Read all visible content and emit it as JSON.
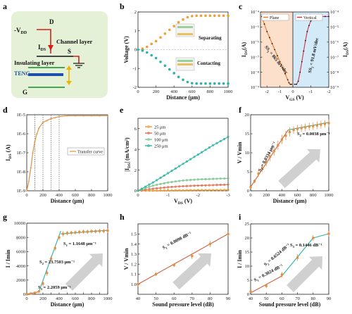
{
  "panels": {
    "a": {
      "label": "a",
      "texts": {
        "vdd": "-V",
        "vdd_sub": "DD",
        "d": "D",
        "ids": "I",
        "ids_sub": "DS",
        "channel": "Channel layer",
        "s": "S",
        "insulating": "Insulating layer",
        "teng": "TENG",
        "g": "G"
      },
      "colors": {
        "bg": "#e4f1d6",
        "wire": "#d4201c",
        "teng": "#1f4fa8",
        "arrow": "#f0b400",
        "layer": "#2e9a44"
      }
    },
    "b": {
      "label": "b"
    },
    "c": {
      "label": "c"
    },
    "d": {
      "label": "d"
    },
    "e": {
      "label": "e"
    },
    "f": {
      "label": "f"
    },
    "g": {
      "label": "g"
    },
    "h": {
      "label": "h"
    },
    "i": {
      "label": "i"
    }
  },
  "chart_data": [
    {
      "panel": "b",
      "type": "line",
      "xlabel": "Distance (μm)",
      "ylabel": "Voltage (V)",
      "xlim": [
        0,
        1000
      ],
      "ylim": [
        -2,
        2
      ],
      "xticks": [
        0,
        200,
        400,
        600,
        800,
        1000
      ],
      "yticks": [
        -2,
        -1,
        0,
        1,
        2
      ],
      "series": [
        {
          "name": "Separating",
          "color": "#f0a030",
          "x": [
            0,
            50,
            100,
            150,
            200,
            250,
            300,
            350,
            400,
            450,
            500,
            550,
            600,
            650,
            700,
            750,
            800,
            850,
            900,
            950,
            1000
          ],
          "y": [
            0,
            0.05,
            0.15,
            0.3,
            0.45,
            0.65,
            0.85,
            1.05,
            1.25,
            1.45,
            1.6,
            1.72,
            1.78,
            1.8,
            1.8,
            1.8,
            1.8,
            1.8,
            1.8,
            1.8,
            1.8
          ]
        },
        {
          "name": "Contacting",
          "color": "#2bb3a8",
          "x": [
            0,
            50,
            100,
            150,
            200,
            250,
            300,
            350,
            400,
            450,
            500,
            550,
            600,
            650,
            700,
            750,
            800,
            850,
            900,
            950,
            1000
          ],
          "y": [
            0,
            -0.05,
            -0.15,
            -0.3,
            -0.45,
            -0.65,
            -0.85,
            -1.05,
            -1.25,
            -1.45,
            -1.6,
            -1.72,
            -1.78,
            -1.8,
            -1.8,
            -1.8,
            -1.8,
            -1.8,
            -1.8,
            -1.8,
            -1.8
          ]
        }
      ]
    },
    {
      "panel": "c",
      "type": "line",
      "xlabel": "V",
      "xlabel_sub": "GS",
      "xlabel_unit": " (V)",
      "ylabel": "I",
      "ylabel_sub": "DS",
      "ylabel_unit": "(A)",
      "y2label": "I",
      "y2label_sub": "DS",
      "y2label_unit": "(A)",
      "yscale": "log",
      "left": {
        "xlim": [
          -2.5,
          0
        ],
        "xticks": [
          -2,
          -1,
          0
        ],
        "ylim_exp": [
          -9,
          -4
        ],
        "bg": "#fde0cc",
        "series": {
          "name": "Plane",
          "color": "#e87828",
          "x": [
            -2.4,
            -2.2,
            -2.0,
            -1.8,
            -1.6,
            -1.4,
            -1.2,
            -1.0,
            -0.8,
            -0.6,
            -0.4,
            -0.3,
            -0.2,
            -0.1
          ],
          "y_exp": [
            -4.3,
            -4.8,
            -5.3,
            -5.7,
            -6.1,
            -6.5,
            -6.9,
            -7.3,
            -7.7,
            -8.1,
            -8.5,
            -8.7,
            -8.8,
            -8.8
          ]
        },
        "annotation": "SS",
        "annotation_sub": "1",
        "annotation_rest": " = 865 mV/dec"
      },
      "right": {
        "xlim": [
          0,
          -2
        ],
        "xticks": [
          0,
          -1,
          -2
        ],
        "ylim_exp": [
          -9,
          -4
        ],
        "bg": "#d3ebf8",
        "series": {
          "name": "Vertical",
          "color": "#d03040",
          "x": [
            -0.1,
            -0.2,
            -0.3,
            -0.4,
            -0.5,
            -0.6,
            -0.7,
            -0.8,
            -0.9,
            -1.0,
            -1.1,
            -1.2,
            -1.4,
            -1.6,
            -1.8,
            -2.0
          ],
          "y_exp": [
            -8.8,
            -8.8,
            -8.6,
            -8.0,
            -7.3,
            -6.6,
            -5.9,
            -5.3,
            -4.9,
            -4.6,
            -4.5,
            -4.4,
            -4.35,
            -4.3,
            -4.3,
            -4.3
          ]
        },
        "annotation": "SS",
        "annotation_sub": "2",
        "annotation_rest": " = 91.8 mV/dec"
      }
    },
    {
      "panel": "d",
      "type": "line",
      "xlabel": "Distance (μm)",
      "ylabel": "I",
      "ylabel_sub": "DS",
      "ylabel_unit": " (A)",
      "yscale": "log",
      "xlim": [
        0,
        1000
      ],
      "ylim_exp": [
        -9,
        -5
      ],
      "xticks": [
        0,
        200,
        400,
        600,
        800,
        1000
      ],
      "yticks": [
        "1E-9",
        "1E-8",
        "1E-7",
        "1E-6",
        "1E-5"
      ],
      "dashed_x": [
        100,
        200,
        300,
        400
      ],
      "series": [
        {
          "name": "Transfer curve",
          "color": "#e09040",
          "x": [
            0,
            25,
            50,
            75,
            100,
            125,
            150,
            200,
            250,
            300,
            350,
            400,
            500,
            600,
            700,
            800,
            900,
            1000
          ],
          "y_exp": [
            -9.0,
            -8.5,
            -7.8,
            -7.0,
            -6.4,
            -6.0,
            -5.7,
            -5.4,
            -5.3,
            -5.2,
            -5.15,
            -5.1,
            -5.05,
            -5.05,
            -5.05,
            -5.05,
            -5.05,
            -5.05
          ]
        }
      ]
    },
    {
      "panel": "e",
      "type": "line",
      "xlabel": "V",
      "xlabel_sub": "DS",
      "xlabel_unit": " (V)",
      "ylabel": "|I",
      "ylabel_sub": "DS",
      "ylabel_unit": "| (mA/cm²)",
      "xlim": [
        0,
        -3
      ],
      "ylim": [
        0,
        7
      ],
      "xticks": [
        0,
        -1,
        -2,
        -3
      ],
      "yticks": [
        0,
        2,
        4,
        6
      ],
      "series": [
        {
          "name": "25 μm",
          "color": "#f0a030",
          "x": [
            0,
            -0.5,
            -1,
            -1.5,
            -2,
            -2.5,
            -3
          ],
          "y": [
            0,
            0.02,
            0.04,
            0.05,
            0.06,
            0.07,
            0.08
          ]
        },
        {
          "name": "50 μm",
          "color": "#e07050",
          "x": [
            0,
            -0.5,
            -1,
            -1.5,
            -2,
            -2.5,
            -3
          ],
          "y": [
            0,
            0.2,
            0.35,
            0.45,
            0.5,
            0.55,
            0.6
          ]
        },
        {
          "name": "100 μm",
          "color": "#7ec890",
          "x": [
            0,
            -0.5,
            -1,
            -1.5,
            -2,
            -2.5,
            -3
          ],
          "y": [
            0,
            0.5,
            0.8,
            1.0,
            1.1,
            1.15,
            1.2
          ]
        },
        {
          "name": "250 μm",
          "color": "#2bb3a8",
          "x": [
            0,
            -0.5,
            -1,
            -1.5,
            -2,
            -2.5,
            -3
          ],
          "y": [
            0,
            0.8,
            1.7,
            2.6,
            3.5,
            4.4,
            5.2
          ]
        }
      ]
    },
    {
      "panel": "f",
      "type": "line",
      "xlabel": "Distance (μm)",
      "ylabel": "V / Vmin",
      "xlim": [
        0,
        1000
      ],
      "ylim": [
        0,
        20
      ],
      "xticks": [
        0,
        200,
        400,
        600,
        800,
        1000
      ],
      "yticks": [
        0,
        5,
        10,
        15,
        20
      ],
      "series": [
        {
          "name": "data",
          "color": "#e09040",
          "x": [
            0,
            50,
            100,
            150,
            200,
            250,
            300,
            350,
            400,
            450,
            500,
            550,
            600,
            650,
            700,
            750,
            800,
            850,
            900,
            950,
            1000
          ],
          "y": [
            1,
            2.5,
            4.5,
            6,
            7.5,
            9,
            10.5,
            12,
            13.5,
            14.5,
            15.5,
            16,
            16.3,
            16.5,
            16.7,
            16.9,
            17,
            17.2,
            17.4,
            17.6,
            17.8
          ],
          "err": [
            0.3,
            0.5,
            0.8,
            1,
            1,
            1.2,
            1.2,
            1.2,
            1.2,
            1.2,
            1.2,
            1,
            1,
            1,
            1,
            1,
            1,
            1,
            1,
            1,
            1
          ]
        }
      ],
      "fits": [
        {
          "color": "#d06040",
          "x": [
            0,
            480
          ],
          "y": [
            1,
            16
          ],
          "label": "S",
          "label_sub": "1",
          "label_rest": " = 0.0334 μm⁻¹"
        },
        {
          "color": "#2bb3a8",
          "x": [
            480,
            1000
          ],
          "y": [
            16,
            18
          ],
          "label": "S",
          "label_sub": "2",
          "label_rest": " = 0.0038 μm⁻¹"
        }
      ]
    },
    {
      "panel": "g",
      "type": "line",
      "xlabel": "Distance (μm)",
      "ylabel": "I / Imin",
      "xlim": [
        0,
        1000
      ],
      "ylim": [
        0,
        10000
      ],
      "xticks": [
        0,
        100,
        200,
        300,
        400,
        500,
        600,
        700,
        800,
        900,
        1000
      ],
      "yticks": [
        0,
        2000,
        4000,
        6000,
        8000,
        10000
      ],
      "series": [
        {
          "name": "data",
          "color": "#e09040",
          "x": [
            0,
            50,
            100,
            150,
            200,
            250,
            300,
            350,
            400,
            450,
            500,
            550,
            600,
            650,
            700,
            750,
            800,
            850,
            900,
            950,
            1000
          ],
          "y": [
            0,
            100,
            200,
            400,
            1500,
            3000,
            5000,
            6500,
            8000,
            8500,
            8600,
            8650,
            8700,
            8750,
            8800,
            8800,
            8850,
            8850,
            8900,
            8900,
            8950
          ],
          "err": [
            0,
            50,
            80,
            120,
            400,
            400,
            400,
            400,
            400,
            400,
            300,
            300,
            300,
            300,
            300,
            300,
            300,
            300,
            300,
            300,
            300
          ]
        }
      ],
      "fits": [
        {
          "color": "#d06040",
          "x": [
            0,
            150
          ],
          "y": [
            0,
            350
          ],
          "label": "S",
          "label_sub": "3",
          "label_rest": " = 2.2059 μm⁻¹"
        },
        {
          "color": "#2bb3a8",
          "x": [
            150,
            420
          ],
          "y": [
            350,
            8900
          ],
          "label": "S",
          "label_sub": "2",
          "label_rest": " = 23.7503 μm⁻¹"
        },
        {
          "color": "#2bb3a8",
          "x": [
            420,
            1000
          ],
          "y": [
            8500,
            9000
          ],
          "label": "S",
          "label_sub": "1",
          "label_rest": " = 1.1648 μm⁻¹"
        }
      ]
    },
    {
      "panel": "h",
      "type": "line",
      "xlabel": "Sound pressure level (dB)",
      "ylabel": "V / Vmin",
      "xlim": [
        40,
        90
      ],
      "ylim": [
        0.9,
        1.6
      ],
      "xticks": [
        40,
        50,
        60,
        70,
        80,
        90
      ],
      "yticks": [
        1.0,
        1.1,
        1.2,
        1.3,
        1.4,
        1.5
      ],
      "series": [
        {
          "name": "data",
          "color": "#e09040",
          "x": [
            40,
            50,
            60,
            70,
            80,
            90
          ],
          "y": [
            1.0,
            1.1,
            1.19,
            1.28,
            1.4,
            1.5
          ],
          "err": [
            0.02,
            0.02,
            0.02,
            0.03,
            0.03,
            0.02
          ]
        }
      ],
      "fits": [
        {
          "color": "#d06040",
          "x": [
            40,
            90
          ],
          "y": [
            1.0,
            1.5
          ],
          "label": "S",
          "label_sub": "1",
          "label_rest": " = 0.0098 dB⁻¹"
        }
      ]
    },
    {
      "panel": "i",
      "type": "line",
      "xlabel": "Sound pressure level (dB)",
      "ylabel": "I / Imin",
      "xlim": [
        40,
        90
      ],
      "ylim": [
        0,
        25
      ],
      "xticks": [
        40,
        50,
        60,
        70,
        80,
        90
      ],
      "yticks": [
        0,
        5,
        10,
        15,
        20,
        25
      ],
      "series": [
        {
          "name": "data",
          "color": "#e09040",
          "x": [
            40,
            50,
            60,
            70,
            80,
            90
          ],
          "y": [
            1,
            3,
            7,
            13,
            20,
            21.5
          ],
          "err": [
            0.5,
            0.8,
            1,
            1.2,
            1,
            1
          ]
        }
      ],
      "fits": [
        {
          "color": "#d06040",
          "x": [
            40,
            60
          ],
          "y": [
            0.5,
            6.5
          ],
          "label": "S",
          "label_sub": "1",
          "label_rest": " = 0.3024 dB⁻¹"
        },
        {
          "color": "#2bb3a8",
          "x": [
            60,
            80
          ],
          "y": [
            6.5,
            20
          ],
          "label": "S",
          "label_sub": "2",
          "label_rest": " = 0.6524 dB⁻¹"
        },
        {
          "color": "#2bb3a8",
          "x": [
            80,
            90
          ],
          "y": [
            20,
            21.5
          ],
          "label": "S",
          "label_sub": "3",
          "label_rest": " = 0.1446 dB⁻¹"
        }
      ]
    }
  ]
}
